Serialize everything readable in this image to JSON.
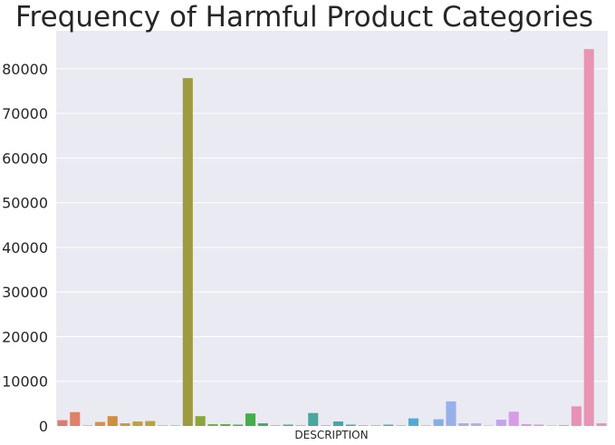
{
  "chart_data": {
    "type": "bar",
    "title": "Frequency of Harmful Product Categories",
    "xlabel": "DESCRIPTION",
    "ylabel": "",
    "ylim": [
      0,
      88500
    ],
    "yticks": [
      0,
      10000,
      20000,
      30000,
      40000,
      50000,
      60000,
      70000,
      80000
    ],
    "grid": true,
    "x_tick_labels_visible": false,
    "values": [
      1300,
      3100,
      100,
      900,
      2200,
      600,
      1000,
      1100,
      100,
      100,
      77900,
      2200,
      400,
      400,
      300,
      2800,
      600,
      100,
      300,
      100,
      2900,
      100,
      1000,
      300,
      100,
      100,
      300,
      100,
      1700,
      100,
      1500,
      5500,
      600,
      600,
      100,
      1400,
      3200,
      400,
      300,
      100,
      200,
      4400,
      84400,
      600
    ],
    "colors": [
      "#e07b6c",
      "#e0806a",
      "#e08866",
      "#d88f4f",
      "#cf8f3f",
      "#c99944",
      "#c1a040",
      "#b6a33c",
      "#ada53d",
      "#a6a33f",
      "#9d9a40",
      "#8aa53c",
      "#77aa3e",
      "#5fae3e",
      "#52ab48",
      "#46ad4a",
      "#45a964",
      "#45a878",
      "#45a78a",
      "#45a69a",
      "#48a89d",
      "#47a7a8",
      "#47a6ab",
      "#47a7b2",
      "#48a8b8",
      "#49a9bf",
      "#4aa9c6",
      "#4daad0",
      "#50acd6",
      "#6fb2de",
      "#85aee6",
      "#97b0ea",
      "#a8acf0",
      "#b4a9f2",
      "#bea5f1",
      "#c6a2ee",
      "#d69ce8",
      "#de97de",
      "#e493d2",
      "#e694c6",
      "#e898be",
      "#e892b6",
      "#e895b3",
      "#e698ac"
    ]
  }
}
